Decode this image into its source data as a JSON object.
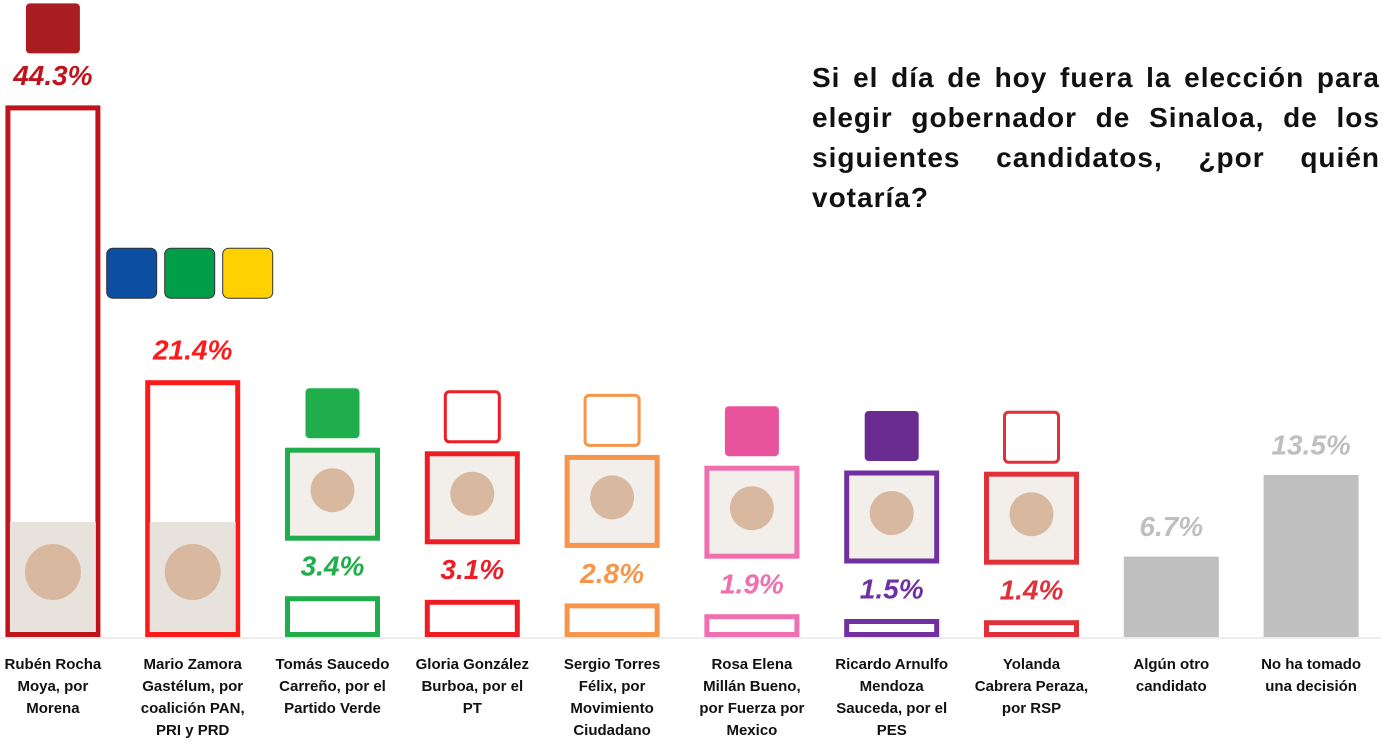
{
  "chart_data": {
    "type": "bar",
    "title": "Si el día de hoy fuera la elección para elegir gobernador de Sinaloa, de los siguientes candidatos, ¿por quién votaría?",
    "categories": [
      "Rubén Rocha\nMoya, por\nMorena",
      "Mario Zamora\nGastélum, por\ncoalición PAN,\nPRI y PRD",
      "Tomás Saucedo\nCarreño, por el\nPartido Verde",
      "Gloria González\nBurboa, por el\nPT",
      "Sergio Torres\nFélix, por\nMovimiento\nCiudadano",
      "Rosa Elena\nMillán Bueno,\npor Fuerza por\nMexico",
      "Ricardo Arnulfo\nMendoza\nSauceda, por el\nPES",
      "Yolanda\nCabrera Peraza,\npor RSP",
      "Algún otro\ncandidato",
      "No ha tomado\nuna decisión"
    ],
    "values": [
      44.3,
      21.4,
      3.4,
      3.1,
      2.8,
      1.9,
      1.5,
      1.4,
      6.7,
      13.5
    ],
    "value_labels": [
      "44.3%",
      "21.4%",
      "3.4%",
      "3.1%",
      "2.8%",
      "1.9%",
      "1.5%",
      "1.4%",
      "6.7%",
      "13.5%"
    ],
    "colors": [
      "#c0141c",
      "#ff1a1a",
      "#1fae4b",
      "#ee1c25",
      "#f7964a",
      "#ef6fb0",
      "#7030a0",
      "#e0303a",
      "#bfbfbf",
      "#bfbfbf"
    ],
    "ylim": [
      0,
      45
    ]
  }
}
